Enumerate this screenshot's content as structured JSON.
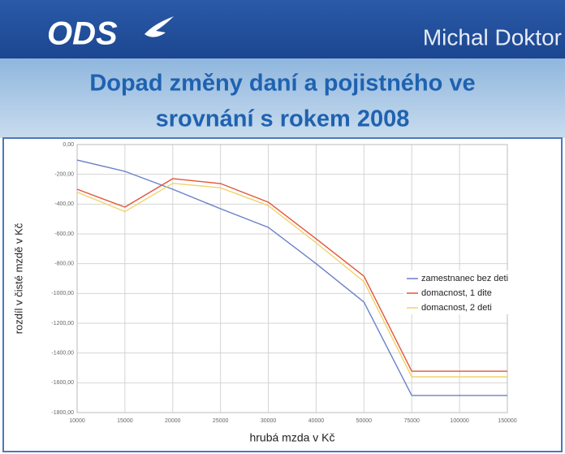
{
  "header": {
    "logo": "ODS",
    "author": "Michal Doktor"
  },
  "slide_title": [
    "Dopad změny daní a pojistného ve",
    "srovnání s rokem 2008"
  ],
  "chart_data": {
    "type": "line",
    "x_label": "hrubá mzda v Kč",
    "y_label": "rozdíl v čisté mzdě v Kč",
    "categories": [
      "10000",
      "15000",
      "20000",
      "25000",
      "30000",
      "40000",
      "50000",
      "75000",
      "100000",
      "150000"
    ],
    "series": [
      {
        "name": "zamestnanec bez deti",
        "color": "#6a80c8",
        "values": [
          -104,
          -180,
          -300,
          -431,
          -556,
          -800,
          -1058,
          -1685,
          -1685,
          -1685
        ]
      },
      {
        "name": "domacnost, 1 dite",
        "color": "#e0553a",
        "values": [
          -300,
          -420,
          -229,
          -262,
          -387,
          -633,
          -884,
          -1522,
          -1522,
          -1522
        ]
      },
      {
        "name": "domacnost, 2 deti",
        "color": "#f2d36a",
        "values": [
          -320,
          -450,
          -260,
          -290,
          -410,
          -660,
          -920,
          -1560,
          -1560,
          -1560
        ]
      }
    ],
    "ylim": [
      -1800,
      0
    ],
    "yticks": [
      {
        "value": 0,
        "label": "0,00"
      },
      {
        "value": -200,
        "label": "-200,00"
      },
      {
        "value": -400,
        "label": "-400,00"
      },
      {
        "value": -600,
        "label": "-600,00"
      },
      {
        "value": -800,
        "label": "-800,00"
      },
      {
        "value": -1000,
        "label": "-1000,00"
      },
      {
        "value": -1200,
        "label": "-1200,00"
      },
      {
        "value": -1400,
        "label": "-1400,00"
      },
      {
        "value": -1600,
        "label": "-1600,00"
      },
      {
        "value": -1800,
        "label": "-1800,00"
      }
    ],
    "grid": true,
    "legend": "right"
  }
}
